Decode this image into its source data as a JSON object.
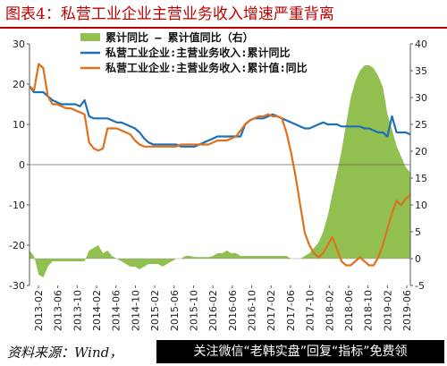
{
  "title": "图表4：私营工业企业主营业务收入增速严重背离",
  "source": "资料来源：Wind，",
  "promo": "关注微信“老韩实盘”回复“指标”免费领",
  "colors": {
    "area": "#92c050",
    "blue": "#1f6fb4",
    "orange": "#e0701e",
    "title": "#c00000"
  },
  "chart_data": {
    "type": "line",
    "x_ticks": [
      "2013-02",
      "2013-06",
      "2013-10",
      "2014-02",
      "2014-06",
      "2014-10",
      "2015-02",
      "2015-06",
      "2015-10",
      "2016-02",
      "2016-06",
      "2016-10",
      "2017-02",
      "2017-06",
      "2017-10",
      "2018-02",
      "2018-06",
      "2018-10",
      "2019-02",
      "2019-06"
    ],
    "y_left": {
      "ticks": [
        "30",
        "20",
        "10",
        "0",
        "-10",
        "-20",
        "-30"
      ],
      "ylim": [
        -30,
        30
      ]
    },
    "y_right": {
      "ticks": [
        "40",
        "35",
        "30",
        "25",
        "20",
        "15",
        "10",
        "5",
        "0",
        "-5"
      ],
      "ylim": [
        -5,
        40
      ]
    },
    "legend": {
      "placement": "top-center"
    },
    "series": [
      {
        "name": "累计同比 – 累计值同比（右）",
        "type": "area",
        "axis": "right",
        "values": [
          1.5,
          0.5,
          -3,
          -3.5,
          -1.5,
          -0.5,
          -0.5,
          -0.5,
          -0.5,
          -0.5,
          -0.5,
          -0.5,
          -0.5,
          1.5,
          2,
          2.5,
          1,
          1.5,
          0.5,
          0,
          -0.5,
          -1,
          -1.5,
          -1.5,
          -2,
          -1.5,
          -1,
          -1,
          -1,
          -1.5,
          -1,
          -0.5,
          0,
          0,
          0.5,
          0.5,
          0.3,
          0.3,
          0.3,
          0.3,
          0.5,
          1,
          1,
          1.5,
          1,
          1,
          0.5,
          0.5,
          0.5,
          0.5,
          0.5,
          0.5,
          0.5,
          0.5,
          0.5,
          0.5,
          0.5,
          0,
          0,
          0,
          0.5,
          1,
          2,
          3,
          5,
          8,
          12,
          16,
          20,
          25,
          30,
          33,
          35,
          36,
          36,
          35.5,
          34,
          32,
          27,
          24,
          21,
          19,
          17,
          16
        ]
      },
      {
        "name": "私营工业企业:主营业务收入:累计同比",
        "type": "line",
        "axis": "left",
        "values": [
          19.5,
          18,
          18,
          18,
          17,
          16,
          15.5,
          15,
          15,
          15,
          15,
          14.5,
          16,
          12,
          11.5,
          11.5,
          11.5,
          11.5,
          11,
          10.5,
          10.5,
          10,
          9.5,
          9,
          8,
          6.5,
          5.5,
          5,
          5,
          5,
          5,
          5,
          5,
          4.5,
          4.5,
          4.5,
          4.5,
          5,
          5.5,
          6,
          6.5,
          7,
          7,
          7,
          7,
          7,
          7,
          10,
          11,
          11.5,
          11.5,
          11.5,
          12,
          12.5,
          12,
          11.5,
          11,
          10.5,
          10,
          9.5,
          9,
          9,
          9.5,
          10,
          10.5,
          10,
          10,
          10,
          9.5,
          9.5,
          9.5,
          9.5,
          9.5,
          9,
          9,
          8.5,
          8,
          8,
          7,
          12,
          8,
          8,
          8,
          7.5
        ]
      },
      {
        "name": "私营工业企业:主营业务收入:累计值:同比",
        "type": "line",
        "axis": "left",
        "values": [
          19.5,
          18.5,
          25,
          24,
          17,
          15,
          15,
          14.5,
          14,
          14,
          13.5,
          13,
          12.5,
          5.5,
          4,
          3.5,
          4,
          9,
          9,
          9,
          8.5,
          8,
          7.5,
          6,
          5,
          4.5,
          4.5,
          4.5,
          4.5,
          4.5,
          4.5,
          4.5,
          4.5,
          5,
          5,
          5,
          5,
          5,
          5,
          5,
          5.5,
          6,
          6,
          6,
          6.5,
          7,
          8.5,
          10,
          11,
          11.5,
          12,
          12,
          12.5,
          12,
          12,
          11.5,
          8,
          3,
          -3,
          -10,
          -17,
          -20,
          -22,
          -23,
          -22,
          -20,
          -18,
          -21,
          -24,
          -25,
          -25,
          -24,
          -23,
          -24,
          -25,
          -25,
          -23,
          -20,
          -16,
          -12,
          -9,
          -10,
          -8.5,
          -7.5
        ]
      }
    ]
  }
}
